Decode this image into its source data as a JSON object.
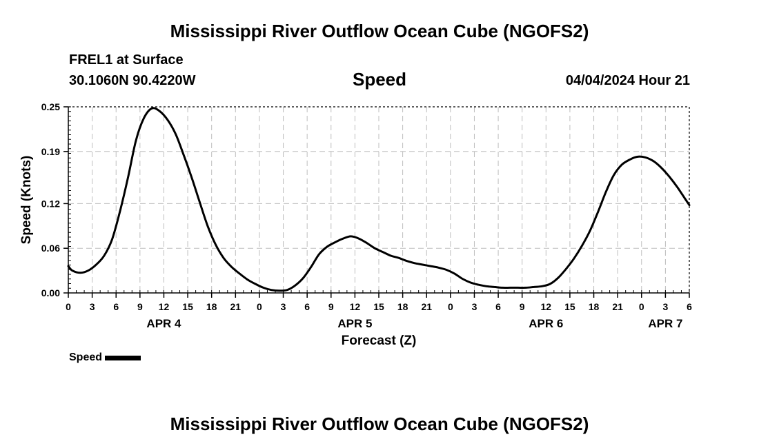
{
  "header": {
    "title": "Mississippi River Outflow Ocean Cube (NGOFS2)",
    "station": "FREL1 at Surface",
    "coords": "30.1060N  90.4220W",
    "variable": "Speed",
    "datetime": "04/04/2024 Hour 21"
  },
  "footer": {
    "title": "Mississippi River Outflow Ocean Cube (NGOFS2)"
  },
  "legend": {
    "label": "Speed",
    "color": "#000000"
  },
  "chart_data": {
    "type": "line",
    "title": "Speed",
    "xlabel": "Forecast (Z)",
    "ylabel": "Speed (Knots)",
    "x_unit": "hours since 2024-04-04 00Z",
    "xlim": [
      0,
      78
    ],
    "ylim": [
      0,
      0.25
    ],
    "yticks": [
      0,
      0.06,
      0.12,
      0.19,
      0.25
    ],
    "ytick_labels": [
      "0.00",
      "0.06",
      "0.12",
      "0.19",
      "0.25"
    ],
    "xticks": [
      0,
      3,
      6,
      9,
      12,
      15,
      18,
      21,
      24,
      27,
      30,
      33,
      36,
      39,
      42,
      45,
      48,
      51,
      54,
      57,
      60,
      63,
      66,
      69,
      72,
      75,
      78
    ],
    "xtick_labels": [
      "0",
      "3",
      "6",
      "9",
      "12",
      "15",
      "18",
      "21",
      "0",
      "3",
      "6",
      "9",
      "12",
      "15",
      "18",
      "21",
      "0",
      "3",
      "6",
      "9",
      "12",
      "15",
      "18",
      "21",
      "0",
      "3",
      "6"
    ],
    "date_labels": [
      {
        "x": 12,
        "label": "APR 4"
      },
      {
        "x": 36,
        "label": "APR 5"
      },
      {
        "x": 60,
        "label": "APR 6"
      },
      {
        "x": 75,
        "label": "APR 7"
      }
    ],
    "grid": true,
    "series": [
      {
        "name": "Speed",
        "color": "#000000",
        "x": [
          0,
          0.5,
          1.5,
          2.5,
          3.5,
          4.5,
          5.5,
          6.5,
          7.5,
          8.5,
          9.5,
          10.5,
          11.5,
          12.5,
          13.5,
          14.5,
          15.5,
          16.5,
          17.5,
          18.5,
          19.5,
          20.5,
          21.5,
          22.5,
          23.5,
          24.5,
          25.5,
          26.5,
          27.5,
          28.5,
          29.5,
          30.5,
          31.5,
          32.5,
          33.5,
          34.5,
          35.5,
          36.5,
          37.5,
          38.5,
          39.5,
          40.5,
          41.5,
          42.5,
          43.5,
          44.5,
          45.5,
          46.5,
          47.5,
          48.5,
          49.5,
          50.5,
          51.5,
          52.5,
          53.5,
          54.5,
          55.5,
          56.5,
          57.5,
          58.5,
          59.5,
          60.5,
          61.5,
          62.5,
          63.5,
          64.5,
          65.5,
          66.5,
          67.5,
          68.5,
          69.5,
          70.5,
          71.5,
          72.5,
          73.5,
          74.5,
          75.5,
          76.5,
          77.5,
          78
        ],
        "y": [
          0.036,
          0.03,
          0.027,
          0.03,
          0.038,
          0.05,
          0.072,
          0.11,
          0.155,
          0.205,
          0.235,
          0.248,
          0.244,
          0.232,
          0.213,
          0.185,
          0.155,
          0.122,
          0.09,
          0.065,
          0.047,
          0.035,
          0.026,
          0.018,
          0.012,
          0.007,
          0.004,
          0.003,
          0.004,
          0.01,
          0.02,
          0.035,
          0.052,
          0.062,
          0.068,
          0.073,
          0.076,
          0.073,
          0.067,
          0.06,
          0.055,
          0.05,
          0.047,
          0.043,
          0.04,
          0.038,
          0.036,
          0.034,
          0.031,
          0.026,
          0.019,
          0.014,
          0.011,
          0.009,
          0.008,
          0.007,
          0.007,
          0.007,
          0.007,
          0.008,
          0.009,
          0.012,
          0.02,
          0.032,
          0.046,
          0.063,
          0.083,
          0.108,
          0.135,
          0.158,
          0.172,
          0.179,
          0.183,
          0.182,
          0.177,
          0.168,
          0.156,
          0.142,
          0.126,
          0.118
        ]
      }
    ]
  }
}
